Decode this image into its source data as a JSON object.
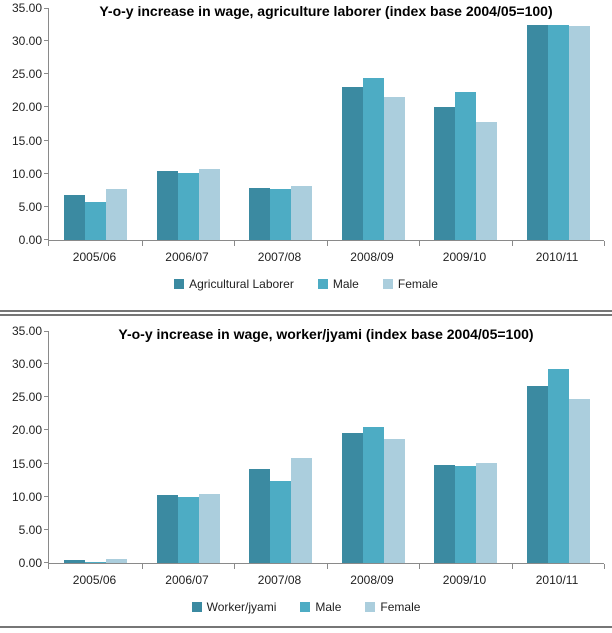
{
  "page": {
    "background": "#ffffff"
  },
  "chart_data": [
    {
      "type": "bar",
      "title": "Y-o-y increase in wage, agriculture laborer (index base 2004/05=100)",
      "categories": [
        "2005/06",
        "2006/07",
        "2007/08",
        "2008/09",
        "2009/10",
        "2010/11"
      ],
      "series": [
        {
          "name": "Agricultural Laborer",
          "color": "#3B8AA1",
          "values": [
            6.8,
            10.4,
            7.9,
            23.1,
            20.1,
            32.4
          ]
        },
        {
          "name": "Male",
          "color": "#4DACC4",
          "values": [
            5.8,
            10.1,
            7.7,
            24.4,
            22.3,
            32.4
          ]
        },
        {
          "name": "Female",
          "color": "#ABCEDD",
          "values": [
            7.7,
            10.7,
            8.2,
            21.5,
            17.8,
            32.3
          ]
        }
      ],
      "xlabel": "",
      "ylabel": "",
      "ylim": [
        0,
        35
      ],
      "y_step": 5,
      "y_tick_labels": [
        "0.00",
        "5.00",
        "10.00",
        "15.00",
        "20.00",
        "25.00",
        "30.00",
        "35.00"
      ],
      "grid": false,
      "legend_position": "bottom"
    },
    {
      "type": "bar",
      "title": "Y-o-y increase in wage, worker/jyami (index base 2004/05=100)",
      "categories": [
        "2005/06",
        "2006/07",
        "2007/08",
        "2008/09",
        "2009/10",
        "2010/11"
      ],
      "series": [
        {
          "name": "Worker/jyami",
          "color": "#3B8AA1",
          "values": [
            0.45,
            10.25,
            14.2,
            19.6,
            14.8,
            26.7
          ]
        },
        {
          "name": "Male",
          "color": "#4DACC4",
          "values": [
            0.2,
            10.0,
            12.4,
            20.5,
            14.7,
            29.3
          ]
        },
        {
          "name": "Female",
          "color": "#ABCEDD",
          "values": [
            0.65,
            10.4,
            15.9,
            18.7,
            15.1,
            24.8
          ]
        }
      ],
      "xlabel": "",
      "ylabel": "",
      "ylim": [
        0,
        35
      ],
      "y_step": 5,
      "y_tick_labels": [
        "0.00",
        "5.00",
        "10.00",
        "15.00",
        "20.00",
        "25.00",
        "30.00",
        "35.00"
      ],
      "grid": false,
      "legend_position": "bottom"
    }
  ],
  "colors": {
    "axis_line": "#8a8a8a",
    "separator_line": "#767676",
    "text": "#1f1f1f",
    "title_text": "#000000"
  }
}
